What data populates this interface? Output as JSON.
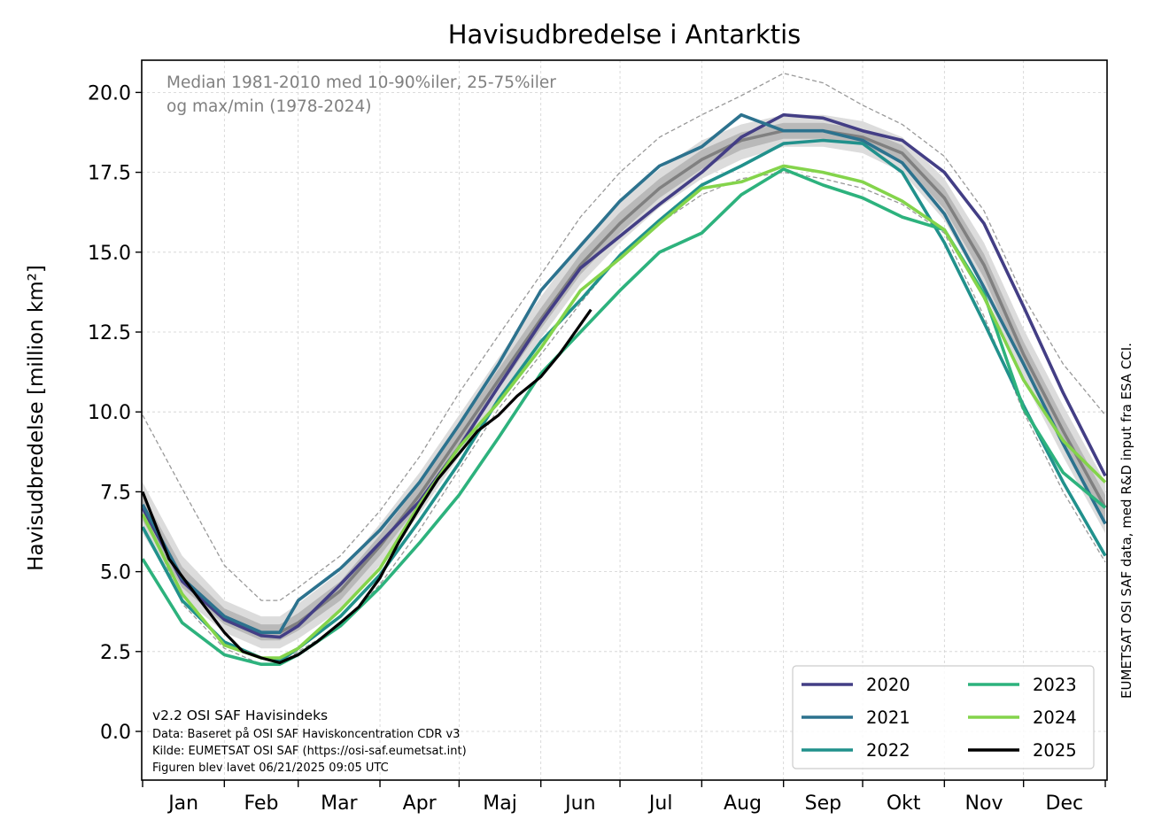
{
  "chart_data": {
    "type": "line",
    "title": "Havisudbredelse i Antarktis",
    "ylabel": "Havisudbredelse [million km²]",
    "ylim": [
      -1.5,
      21.0
    ],
    "xlim": [
      0,
      365
    ],
    "yticks": [
      "0.0",
      "2.5",
      "5.0",
      "7.5",
      "10.0",
      "12.5",
      "15.0",
      "17.5",
      "20.0"
    ],
    "ytick_values": [
      0,
      2.5,
      5,
      7.5,
      10,
      12.5,
      15,
      17.5,
      20
    ],
    "months": [
      "Jan",
      "Feb",
      "Mar",
      "Apr",
      "Maj",
      "Jun",
      "Jul",
      "Aug",
      "Sep",
      "Okt",
      "Nov",
      "Dec"
    ],
    "month_start_days": [
      0,
      31,
      59,
      90,
      120,
      151,
      181,
      212,
      243,
      273,
      304,
      334,
      365
    ],
    "grid": true,
    "legend_position": "lower-right",
    "annotation": [
      "Median 1981-2010 med 10-90%iler, 25-75%iler",
      "og max/min (1978-2024)"
    ],
    "footer": [
      "v2.2 OSI SAF Havisindeks",
      "Data: Baseret på OSI SAF Haviskoncentration CDR v3",
      "Kilde: EUMETSAT OSI SAF (https://osi-saf.eumetsat.int)",
      "Figuren blev lavet 06/21/2025 09:05 UTC"
    ],
    "side_note": "EUMETSAT OSI SAF data, med R&D input fra ESA CCI.",
    "climatology": {
      "x": [
        0,
        15,
        31,
        45,
        52,
        59,
        75,
        90,
        105,
        120,
        135,
        151,
        166,
        181,
        196,
        212,
        227,
        243,
        258,
        273,
        288,
        304,
        319,
        334,
        349,
        365
      ],
      "median": [
        7.0,
        4.8,
        3.6,
        3.1,
        3.1,
        3.4,
        4.4,
        5.8,
        7.4,
        9.2,
        11.0,
        12.9,
        14.6,
        15.9,
        17.0,
        17.9,
        18.5,
        18.8,
        18.8,
        18.6,
        18.1,
        16.7,
        14.6,
        11.8,
        9.4,
        7.0
      ],
      "p10": [
        6.2,
        4.2,
        3.1,
        2.6,
        2.6,
        2.9,
        3.8,
        5.2,
        6.8,
        8.6,
        10.4,
        12.3,
        14.0,
        15.3,
        16.4,
        17.3,
        17.9,
        18.3,
        18.3,
        18.1,
        17.5,
        16.0,
        13.8,
        11.0,
        8.6,
        6.2
      ],
      "p90": [
        7.8,
        5.5,
        4.1,
        3.6,
        3.6,
        4.0,
        5.0,
        6.5,
        8.1,
        9.9,
        11.7,
        13.6,
        15.3,
        16.6,
        17.6,
        18.5,
        19.0,
        19.3,
        19.3,
        19.1,
        18.6,
        17.3,
        15.3,
        12.6,
        10.2,
        7.8
      ],
      "p25": [
        6.6,
        4.5,
        3.35,
        2.85,
        2.85,
        3.15,
        4.1,
        5.5,
        7.1,
        8.9,
        10.7,
        12.6,
        14.3,
        15.6,
        16.7,
        17.6,
        18.2,
        18.55,
        18.55,
        18.35,
        17.8,
        16.35,
        14.2,
        11.4,
        9.0,
        6.6
      ],
      "p75": [
        7.4,
        5.15,
        3.85,
        3.35,
        3.35,
        3.7,
        4.7,
        6.15,
        7.75,
        9.55,
        11.35,
        13.25,
        14.95,
        16.25,
        17.3,
        18.2,
        18.75,
        19.05,
        19.05,
        18.85,
        18.35,
        17.0,
        14.95,
        12.2,
        9.8,
        7.4
      ],
      "max": [
        9.9,
        7.6,
        5.2,
        4.1,
        4.1,
        4.5,
        5.5,
        6.9,
        8.6,
        10.6,
        12.4,
        14.3,
        16.1,
        17.5,
        18.6,
        19.3,
        19.9,
        20.6,
        20.3,
        19.6,
        19.0,
        18.0,
        16.3,
        13.6,
        11.5,
        9.9
      ],
      "min": [
        7.0,
        4.0,
        2.6,
        2.1,
        2.1,
        2.5,
        3.3,
        4.6,
        6.3,
        8.2,
        10.1,
        11.8,
        13.4,
        14.9,
        15.9,
        16.8,
        17.3,
        17.5,
        17.3,
        17.0,
        16.5,
        15.6,
        13.0,
        10.0,
        7.5,
        5.3
      ]
    },
    "series": [
      {
        "name": "2020",
        "color": "#433e85",
        "x": [
          0,
          15,
          31,
          45,
          52,
          59,
          75,
          90,
          105,
          120,
          135,
          151,
          166,
          181,
          196,
          212,
          227,
          243,
          258,
          273,
          288,
          304,
          319,
          334,
          349,
          365
        ],
        "y": [
          7.0,
          4.7,
          3.5,
          3.0,
          2.95,
          3.3,
          4.6,
          5.9,
          7.2,
          8.9,
          10.8,
          12.8,
          14.5,
          15.5,
          16.5,
          17.5,
          18.6,
          19.3,
          19.2,
          18.8,
          18.5,
          17.5,
          15.9,
          13.3,
          10.6,
          8.0
        ]
      },
      {
        "name": "2021",
        "color": "#2c728e",
        "x": [
          0,
          15,
          31,
          45,
          52,
          59,
          75,
          90,
          105,
          120,
          135,
          151,
          166,
          181,
          196,
          212,
          227,
          243,
          258,
          273,
          288,
          304,
          319,
          334,
          349,
          365
        ],
        "y": [
          7.1,
          4.8,
          3.6,
          3.1,
          3.1,
          4.1,
          5.1,
          6.3,
          7.8,
          9.6,
          11.5,
          13.8,
          15.2,
          16.6,
          17.7,
          18.3,
          19.3,
          18.8,
          18.8,
          18.5,
          17.8,
          16.2,
          13.9,
          11.5,
          9.0,
          6.5
        ]
      },
      {
        "name": "2022",
        "color": "#21918c",
        "x": [
          0,
          15,
          31,
          45,
          52,
          59,
          75,
          90,
          105,
          120,
          135,
          151,
          166,
          181,
          196,
          212,
          227,
          243,
          258,
          273,
          288,
          304,
          319,
          334,
          349,
          365
        ],
        "y": [
          6.4,
          4.1,
          2.8,
          2.3,
          2.2,
          2.6,
          3.6,
          4.9,
          6.6,
          8.4,
          10.4,
          12.2,
          13.5,
          14.9,
          16.0,
          17.1,
          17.7,
          18.4,
          18.5,
          18.4,
          17.5,
          15.3,
          12.8,
          10.2,
          7.8,
          5.5
        ]
      },
      {
        "name": "2023",
        "color": "#2db27d",
        "x": [
          0,
          15,
          31,
          45,
          52,
          59,
          75,
          90,
          105,
          120,
          135,
          151,
          166,
          181,
          196,
          212,
          227,
          243,
          258,
          273,
          288,
          304,
          319,
          334,
          349,
          365
        ],
        "y": [
          5.4,
          3.4,
          2.4,
          2.1,
          2.1,
          2.4,
          3.3,
          4.5,
          5.9,
          7.4,
          9.2,
          11.2,
          12.5,
          13.8,
          15.0,
          15.6,
          16.8,
          17.6,
          17.1,
          16.7,
          16.1,
          15.7,
          13.7,
          10.1,
          8.1,
          7.0
        ]
      },
      {
        "name": "2024",
        "color": "#84d44b",
        "x": [
          0,
          15,
          31,
          45,
          52,
          59,
          75,
          90,
          105,
          120,
          135,
          151,
          166,
          181,
          196,
          212,
          227,
          243,
          258,
          273,
          288,
          304,
          319,
          334,
          349,
          365
        ],
        "y": [
          6.8,
          4.3,
          2.7,
          2.3,
          2.3,
          2.6,
          3.8,
          5.1,
          7.1,
          8.9,
          10.3,
          12.0,
          13.8,
          14.8,
          15.9,
          17.0,
          17.2,
          17.7,
          17.5,
          17.2,
          16.6,
          15.7,
          13.6,
          11.0,
          9.1,
          7.8
        ]
      },
      {
        "name": "2025",
        "color": "#000000",
        "x": [
          0,
          10,
          20,
          31,
          38,
          45,
          52,
          59,
          66,
          75,
          82,
          90,
          97,
          105,
          112,
          120,
          127,
          135,
          142,
          151,
          158,
          170
        ],
        "y": [
          7.5,
          5.4,
          4.3,
          3.1,
          2.5,
          2.3,
          2.15,
          2.4,
          2.8,
          3.4,
          3.9,
          4.8,
          5.9,
          7.0,
          7.9,
          8.7,
          9.4,
          9.9,
          10.5,
          11.1,
          11.8,
          13.2
        ]
      }
    ]
  }
}
